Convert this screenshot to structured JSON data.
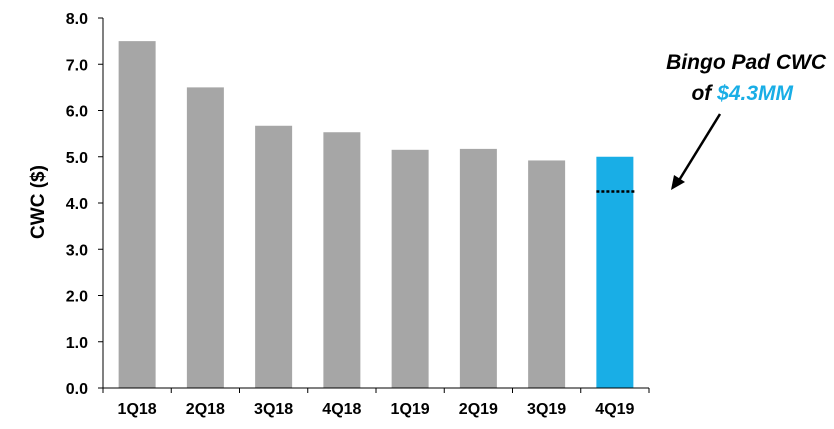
{
  "chart_data": {
    "type": "bar",
    "categories": [
      "1Q18",
      "2Q18",
      "3Q18",
      "4Q18",
      "1Q19",
      "2Q19",
      "3Q19",
      "4Q19"
    ],
    "values": [
      7.5,
      6.5,
      5.67,
      5.53,
      5.15,
      5.17,
      4.92,
      5.0
    ],
    "bar_colors": [
      "#a6a6a6",
      "#a6a6a6",
      "#a6a6a6",
      "#a6a6a6",
      "#a6a6a6",
      "#a6a6a6",
      "#a6a6a6",
      "#19aee6"
    ],
    "ylabel": "CWC ($)",
    "xlabel": "",
    "ylim": [
      0,
      8
    ],
    "yticks": [
      "0.0",
      "1.0",
      "2.0",
      "3.0",
      "4.0",
      "5.0",
      "6.0",
      "7.0",
      "8.0"
    ],
    "grid": false,
    "reference_line": {
      "category": "4Q19",
      "value": 4.25,
      "style": "dotted"
    },
    "annotation": {
      "line1": "Bingo Pad CWC",
      "line2_prefix": "of ",
      "line2_highlight": "$4.3MM",
      "highlight_color": "#19aee6"
    }
  }
}
